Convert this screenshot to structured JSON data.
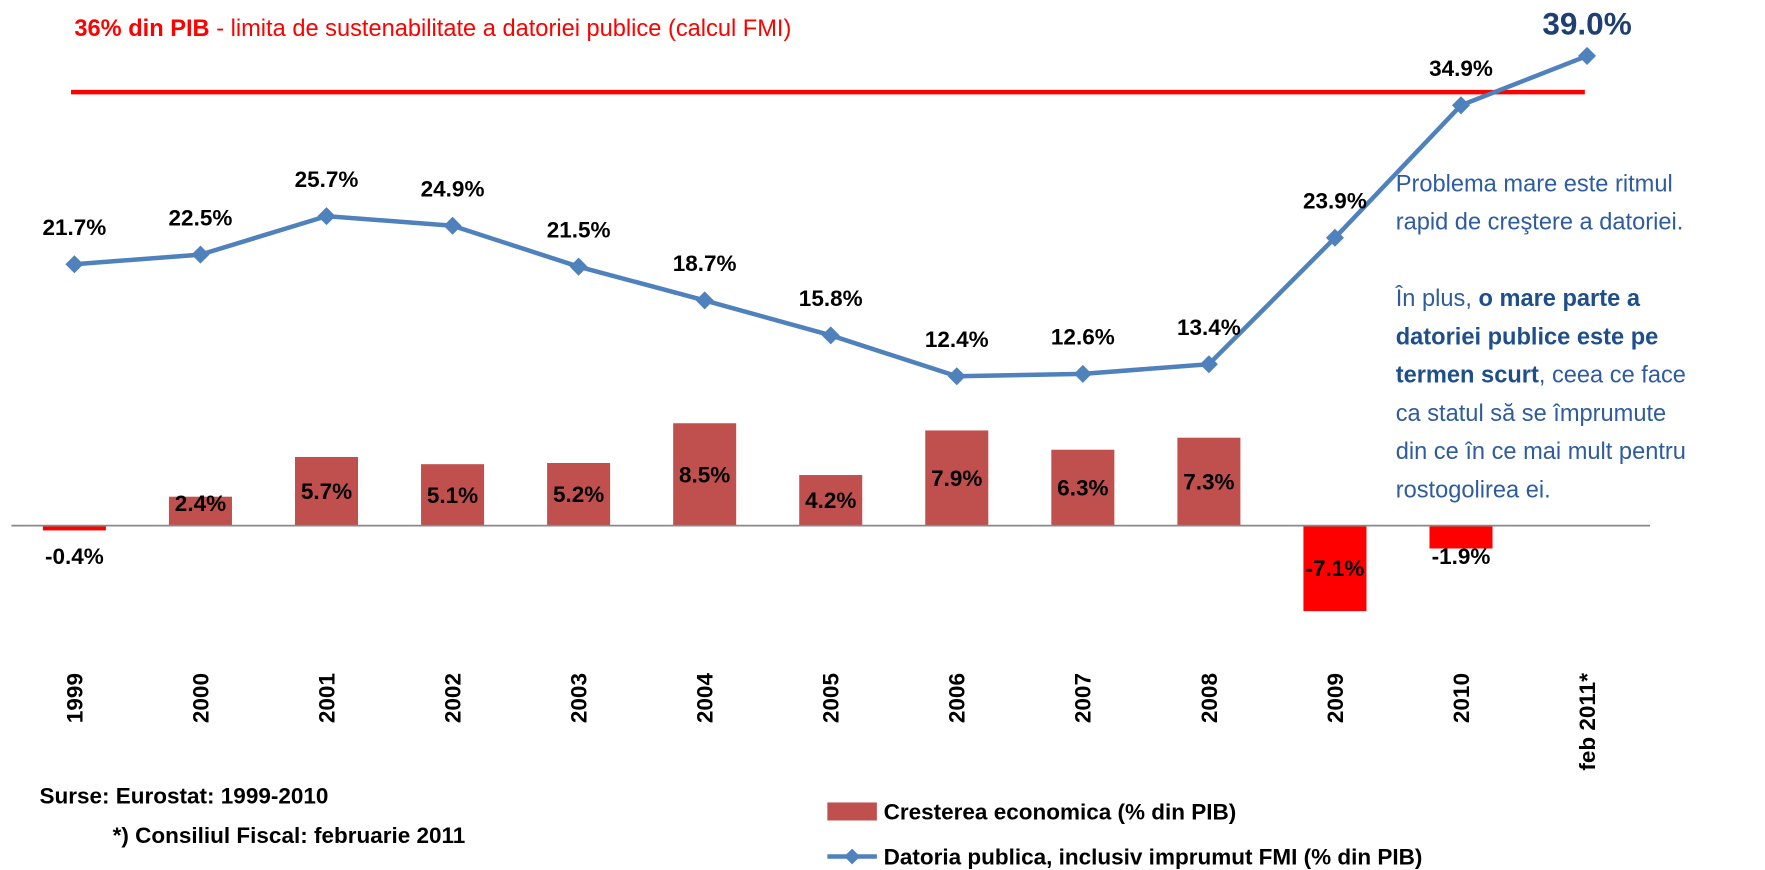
{
  "chart_data": {
    "type": "bar",
    "categories": [
      "1999",
      "2000",
      "2001",
      "2002",
      "2003",
      "2004",
      "2005",
      "2006",
      "2007",
      "2008",
      "2009",
      "2010",
      "feb 2011*"
    ],
    "series": [
      {
        "name": "Cresterea economica (% din PIB)",
        "type": "bar",
        "color": "#c0504d",
        "colors": [
          "#ff0000",
          "#c0504d",
          "#c0504d",
          "#c0504d",
          "#c0504d",
          "#c0504d",
          "#c0504d",
          "#c0504d",
          "#c0504d",
          "#c0504d",
          "#ff0000",
          "#ff0000",
          null
        ],
        "values": [
          -0.4,
          2.4,
          5.7,
          5.1,
          5.2,
          8.5,
          4.2,
          7.9,
          6.3,
          7.3,
          -7.1,
          -1.9,
          null
        ],
        "value_labels": [
          "-0.4%",
          "2.4%",
          "5.7%",
          "5.1%",
          "5.2%",
          "8.5%",
          "4.2%",
          "7.9%",
          "6.3%",
          "7.3%",
          "-7.1%",
          "-1.9%",
          null
        ]
      },
      {
        "name": "Datoria publica, inclusiv imprumut FMI (% din PIB)",
        "type": "line",
        "color": "#4f81bd",
        "values": [
          21.7,
          22.5,
          25.7,
          24.9,
          21.5,
          18.7,
          15.8,
          12.4,
          12.6,
          13.4,
          23.9,
          34.9,
          39.0
        ],
        "value_labels": [
          "21.7%",
          "22.5%",
          "25.7%",
          "24.9%",
          "21.5%",
          "18.7%",
          "15.8%",
          "12.4%",
          "12.6%",
          "13.4%",
          "23.9%",
          "34.9%",
          "39.0%"
        ]
      }
    ],
    "ylim": [
      -10,
      40
    ],
    "reference_line": {
      "value": 36,
      "color": "#ff0000"
    },
    "annotation": {
      "bold": "36% din PIB",
      "text": " - limita de sustenabilitate a datoriei publice (calcul FMI)"
    },
    "side_note": [
      [
        {
          "text": "Problema mare este ritmul",
          "bold": false
        }
      ],
      [
        {
          "text": "rapid de creştere a datoriei.",
          "bold": false
        }
      ],
      [],
      [
        {
          "text": "În plus, ",
          "bold": false
        },
        {
          "text": "o mare parte a",
          "bold": true
        }
      ],
      [
        {
          "text": "datoriei publice este pe",
          "bold": true
        }
      ],
      [
        {
          "text": "termen scurt",
          "bold": true
        },
        {
          "text": ", ceea ce face",
          "bold": false
        }
      ],
      [
        {
          "text": "ca statul să se împrumute",
          "bold": false
        }
      ],
      [
        {
          "text": "din ce în ce mai mult pentru",
          "bold": false
        }
      ],
      [
        {
          "text": "rostogolirea ei.",
          "bold": false
        }
      ]
    ],
    "sources": [
      "Surse: Eurostat: 1999-2010",
      "*) Consiliul Fiscal: februarie 2011"
    ]
  }
}
